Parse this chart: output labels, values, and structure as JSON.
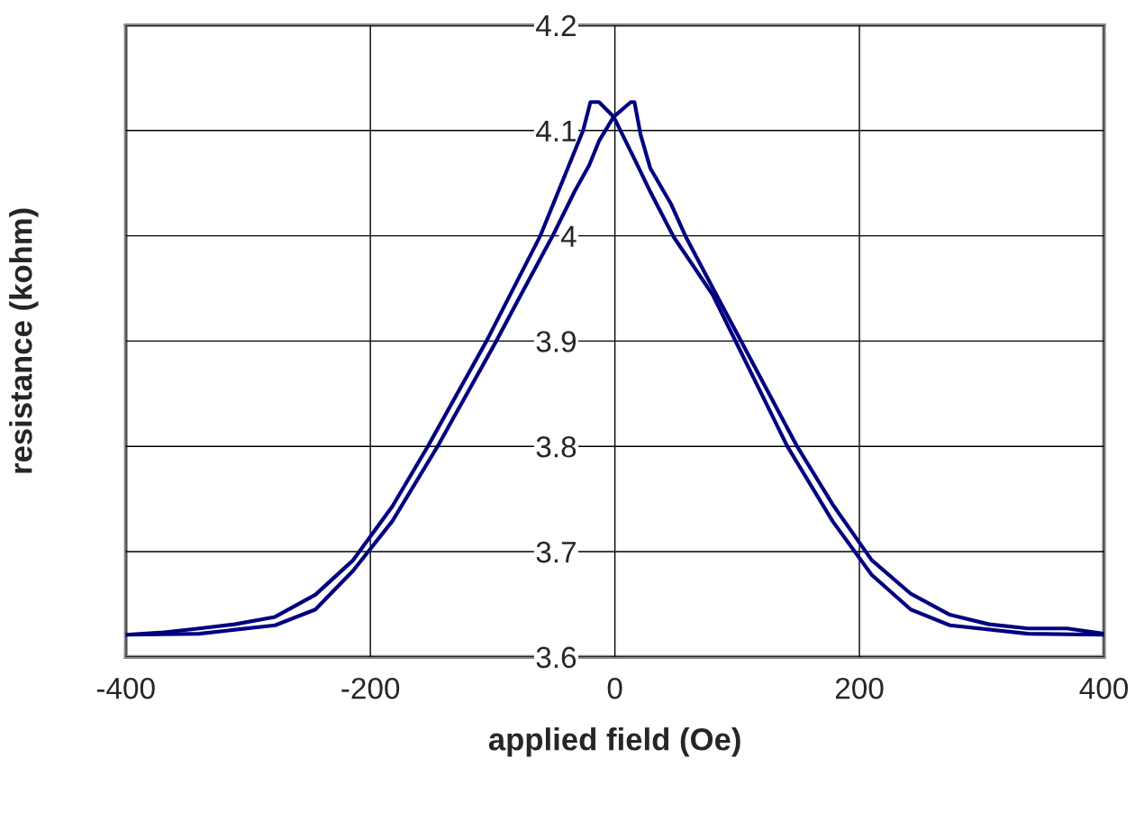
{
  "chart_data": {
    "type": "line",
    "xlabel": "applied field (Oe)",
    "ylabel": "resistance (kohm)",
    "xlim": [
      -400,
      400
    ],
    "xticks": [
      -400,
      -200,
      0,
      200,
      400
    ],
    "ylim": [
      3.6,
      4.2
    ],
    "yticks": [
      3.6,
      3.7,
      3.8,
      3.9,
      4,
      4.1,
      4.2
    ],
    "grid": true,
    "marker": "none",
    "line_style": "solid",
    "series": [
      {
        "color": "#000080",
        "x": [
          -400,
          -372,
          -340,
          -311,
          -278,
          -245,
          -214,
          -182,
          -153,
          -105,
          -61,
          -26,
          -20,
          -13,
          -1,
          16,
          28,
          48,
          80,
          141,
          178,
          210,
          242,
          274,
          338,
          400
        ],
        "values": [
          3.621,
          3.623,
          3.627,
          3.631,
          3.638,
          3.659,
          3.692,
          3.743,
          3.8,
          3.9,
          4.0,
          4.1,
          4.127,
          4.127,
          4.113,
          4.073,
          4.044,
          3.999,
          3.944,
          3.8,
          3.729,
          3.678,
          3.645,
          3.63,
          3.622,
          3.621
        ]
      },
      {
        "color": "#000080",
        "x": [
          -400,
          -340,
          -278,
          -245,
          -214,
          -182,
          -145,
          -97,
          -81,
          -50,
          -33,
          -21,
          -13,
          -1,
          13,
          16,
          21,
          29,
          46,
          58,
          83,
          149,
          178,
          210,
          242,
          274,
          306,
          338,
          370,
          400
        ],
        "values": [
          3.621,
          3.622,
          3.63,
          3.645,
          3.682,
          3.729,
          3.8,
          3.9,
          3.935,
          4.002,
          4.042,
          4.067,
          4.09,
          4.113,
          4.127,
          4.127,
          4.096,
          4.064,
          4.03,
          3.999,
          3.944,
          3.8,
          3.745,
          3.692,
          3.66,
          3.64,
          3.631,
          3.627,
          3.627,
          3.622
        ]
      }
    ]
  }
}
